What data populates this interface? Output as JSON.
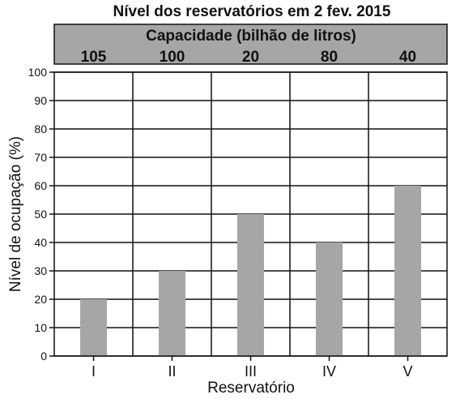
{
  "chart_data": {
    "type": "bar",
    "title": "Nível dos reservatórios em 2 fev. 2015",
    "header_title": "Capacidade (bilhão de litros)",
    "header_values": [
      "105",
      "100",
      "20",
      "80",
      "40"
    ],
    "categories": [
      "I",
      "II",
      "III",
      "IV",
      "V"
    ],
    "values": [
      20,
      30,
      50,
      40,
      60
    ],
    "xlabel": "Reservatório",
    "ylabel": "Nível de ocupação (%)",
    "ylim": [
      0,
      100
    ],
    "yticks": [
      "0",
      "10",
      "20",
      "30",
      "40",
      "50",
      "60",
      "70",
      "80",
      "90",
      "100"
    ],
    "grid": true,
    "bar_color": "#a6a6a8",
    "header_color": "#a6a6a8"
  }
}
